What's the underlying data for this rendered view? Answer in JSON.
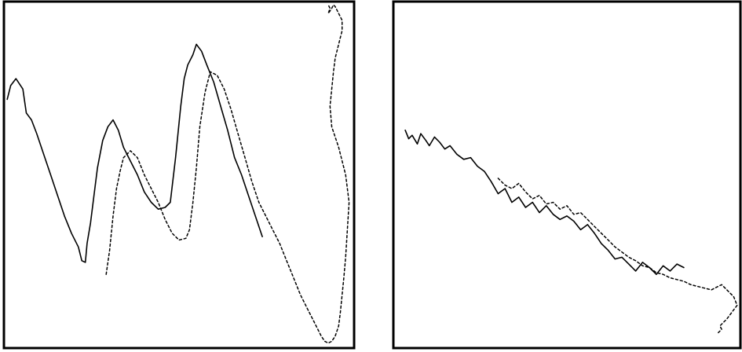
{
  "chart_data": [
    {
      "type": "line",
      "title": "",
      "xlabel": "",
      "ylabel": "",
      "grid": false,
      "legend": "none",
      "xlim": [
        0,
        100
      ],
      "ylim": [
        0,
        100
      ],
      "colors": {
        "line": "#000000",
        "frame": "#000000",
        "background": "#ffffff"
      },
      "series": [
        {
          "style": "solid",
          "x": [
            0.5,
            1.5,
            3.0,
            5.0,
            6.0,
            7.5,
            9.0,
            11.0,
            13.0,
            15.0,
            17.0,
            19.0,
            21.0,
            22.0,
            23.0,
            23.5,
            24.5,
            25.5,
            26.5,
            28.0,
            29.5,
            31.0,
            32.5,
            34.0,
            36.0,
            38.0,
            40.0,
            42.0,
            44.0,
            46.0,
            47.5,
            49.0,
            50.5,
            51.5,
            52.5,
            54.0,
            55.0,
            56.5,
            58.0,
            60.0,
            62.0,
            64.0,
            66.0,
            68.0,
            70.0,
            72.0,
            74.0
          ],
          "y": [
            72.0,
            76.0,
            78.0,
            75.0,
            68.0,
            66.0,
            62.0,
            56.0,
            50.0,
            44.0,
            38.0,
            33.0,
            29.0,
            25.0,
            24.5,
            30.0,
            36.0,
            44.0,
            52.0,
            60.0,
            64.0,
            66.0,
            63.0,
            58.0,
            54.0,
            50.0,
            45.0,
            42.0,
            40.0,
            40.5,
            42.0,
            55.0,
            70.0,
            78.0,
            82.0,
            85.0,
            88.0,
            86.0,
            82.0,
            77.0,
            70.0,
            63.0,
            55.0,
            50.0,
            44.0,
            38.0,
            32.0
          ]
        },
        {
          "style": "dotted",
          "x": [
            29.0,
            30.0,
            31.0,
            32.0,
            33.0,
            34.0,
            36.0,
            38.0,
            40.0,
            42.0,
            44.0,
            46.0,
            48.0,
            50.0,
            52.0,
            53.0,
            54.0,
            55.0,
            56.0,
            57.5,
            59.0,
            61.0,
            63.0,
            65.0,
            67.0,
            69.0,
            71.0,
            73.0,
            75.0,
            77.0,
            79.0,
            81.0,
            83.0,
            85.0,
            87.0,
            89.0,
            91.0,
            92.0,
            93.0,
            94.0,
            95.0,
            96.0,
            96.5,
            97.0,
            97.5,
            98.0,
            98.5,
            99.0,
            98.0,
            96.0,
            94.0,
            93.5,
            94.0,
            94.5,
            95.0,
            96.0,
            96.5,
            97.0,
            97.0,
            96.0,
            95.5,
            95.0,
            94.5,
            94.0,
            93.0,
            93.5,
            93.0
          ],
          "y": [
            21.0,
            28.0,
            38.0,
            46.0,
            51.0,
            55.0,
            57.0,
            55.0,
            50.0,
            46.0,
            42.0,
            37.0,
            33.0,
            31.0,
            31.5,
            34.0,
            42.0,
            52.0,
            64.0,
            74.0,
            80.0,
            79.0,
            75.0,
            69.0,
            62.0,
            55.0,
            48.0,
            42.0,
            38.0,
            34.0,
            30.0,
            25.0,
            20.0,
            15.0,
            11.0,
            7.0,
            3.0,
            1.5,
            1.0,
            1.5,
            3.0,
            6.0,
            10.0,
            15.0,
            20.0,
            26.0,
            34.0,
            42.0,
            50.0,
            58.0,
            64.0,
            70.0,
            75.0,
            80.0,
            84.0,
            88.0,
            90.0,
            92.0,
            95.0,
            97.0,
            98.0,
            99.0,
            99.5,
            98.5,
            97.0,
            98.5,
            99.5
          ]
        }
      ]
    },
    {
      "type": "line",
      "title": "",
      "xlabel": "",
      "ylabel": "",
      "grid": false,
      "legend": "none",
      "xlim": [
        0,
        100
      ],
      "ylim": [
        0,
        100
      ],
      "colors": {
        "line": "#000000",
        "frame": "#000000",
        "background": "#ffffff"
      },
      "series": [
        {
          "style": "solid",
          "x": [
            3.0,
            4.0,
            5.0,
            6.5,
            7.5,
            9.0,
            10.0,
            11.5,
            13.0,
            14.5,
            16.0,
            18.0,
            20.0,
            22.0,
            24.0,
            26.0,
            28.0,
            30.0,
            32.0,
            34.0,
            36.0,
            38.0,
            40.0,
            42.0,
            44.0,
            46.0,
            48.0,
            50.0,
            52.0,
            54.0,
            56.0,
            58.0,
            60.0,
            62.0,
            64.0,
            66.0,
            68.0,
            70.0,
            72.0,
            74.0,
            76.0,
            78.0,
            80.0,
            82.0,
            84.0
          ],
          "y": [
            63.0,
            60.5,
            61.5,
            59.0,
            62.0,
            60.0,
            58.5,
            61.0,
            59.5,
            57.5,
            58.5,
            56.0,
            54.5,
            55.0,
            52.5,
            51.0,
            48.0,
            44.5,
            46.0,
            42.0,
            43.5,
            40.5,
            42.0,
            39.0,
            41.0,
            38.5,
            37.0,
            38.0,
            36.5,
            34.0,
            35.5,
            33.0,
            30.0,
            28.0,
            25.5,
            26.0,
            24.0,
            22.0,
            24.5,
            23.0,
            21.0,
            23.5,
            22.0,
            24.0,
            23.0
          ]
        },
        {
          "style": "dotted",
          "x": [
            30.0,
            32.0,
            34.0,
            36.0,
            38.0,
            40.0,
            42.0,
            44.0,
            46.0,
            48.0,
            50.0,
            52.0,
            54.0,
            56.0,
            58.0,
            60.0,
            62.0,
            64.0,
            66.0,
            68.0,
            70.0,
            72.0,
            74.0,
            76.0,
            78.0,
            80.0,
            82.0,
            84.0,
            86.0,
            88.0,
            90.0,
            92.0,
            93.0,
            95.0,
            97.0,
            98.5,
            99.5,
            98.0,
            96.5,
            95.5,
            94.5,
            95.0,
            94.0
          ],
          "y": [
            49.0,
            47.0,
            46.0,
            47.5,
            45.0,
            43.0,
            44.0,
            41.5,
            42.0,
            40.0,
            41.0,
            38.5,
            39.0,
            37.0,
            35.0,
            33.0,
            31.0,
            29.0,
            27.5,
            26.0,
            25.0,
            23.5,
            23.0,
            21.5,
            21.0,
            20.0,
            19.5,
            19.0,
            18.0,
            17.5,
            17.0,
            16.5,
            17.0,
            18.0,
            16.0,
            14.5,
            12.0,
            10.0,
            8.0,
            7.0,
            6.0,
            5.0,
            4.0
          ]
        }
      ]
    }
  ]
}
